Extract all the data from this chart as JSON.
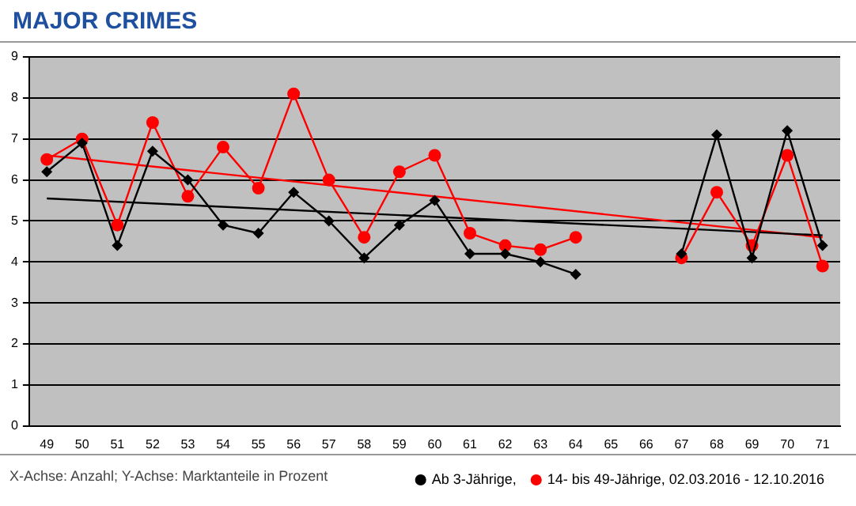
{
  "chart_data": {
    "type": "line",
    "title": "MAJOR CRIMES",
    "categories": [
      "49",
      "50",
      "51",
      "52",
      "53",
      "54",
      "55",
      "56",
      "57",
      "58",
      "59",
      "60",
      "61",
      "62",
      "63",
      "64",
      "65",
      "66",
      "67",
      "68",
      "69",
      "70",
      "71"
    ],
    "series": [
      {
        "name": "Ab 3-Jährige,",
        "color": "#000000",
        "marker": "diamond",
        "values": [
          6.2,
          6.9,
          4.4,
          6.7,
          6.0,
          4.9,
          4.7,
          5.7,
          5.0,
          4.1,
          4.9,
          5.5,
          4.2,
          4.2,
          4.0,
          3.7,
          null,
          null,
          4.2,
          7.1,
          4.1,
          7.2,
          4.4
        ]
      },
      {
        "name": "14- bis 49-Jährige, 02.03.2016 - 12.10.2016",
        "color": "#ff0000",
        "marker": "circle",
        "values": [
          6.5,
          7.0,
          4.9,
          7.4,
          5.6,
          6.8,
          5.8,
          8.1,
          6.0,
          4.6,
          6.2,
          6.6,
          4.7,
          4.4,
          4.3,
          4.6,
          null,
          null,
          4.1,
          5.7,
          4.4,
          6.6,
          3.9
        ]
      },
      {
        "type": "line",
        "color": "#000000",
        "marker": "none",
        "x": [
          "49",
          "71"
        ],
        "values": [
          5.55,
          4.65
        ]
      },
      {
        "type": "line",
        "color": "#ff0000",
        "marker": "none",
        "x": [
          "49",
          "71"
        ],
        "values": [
          6.6,
          4.6
        ]
      }
    ],
    "ylim": [
      0,
      9
    ],
    "yticks": [
      0,
      1,
      2,
      3,
      4,
      5,
      6,
      7,
      8,
      9
    ],
    "grid": "y",
    "legend": "bottom",
    "annotations": [
      "X-Achse: Anzahl; Y-Achse: Marktanteile in Prozent"
    ]
  }
}
